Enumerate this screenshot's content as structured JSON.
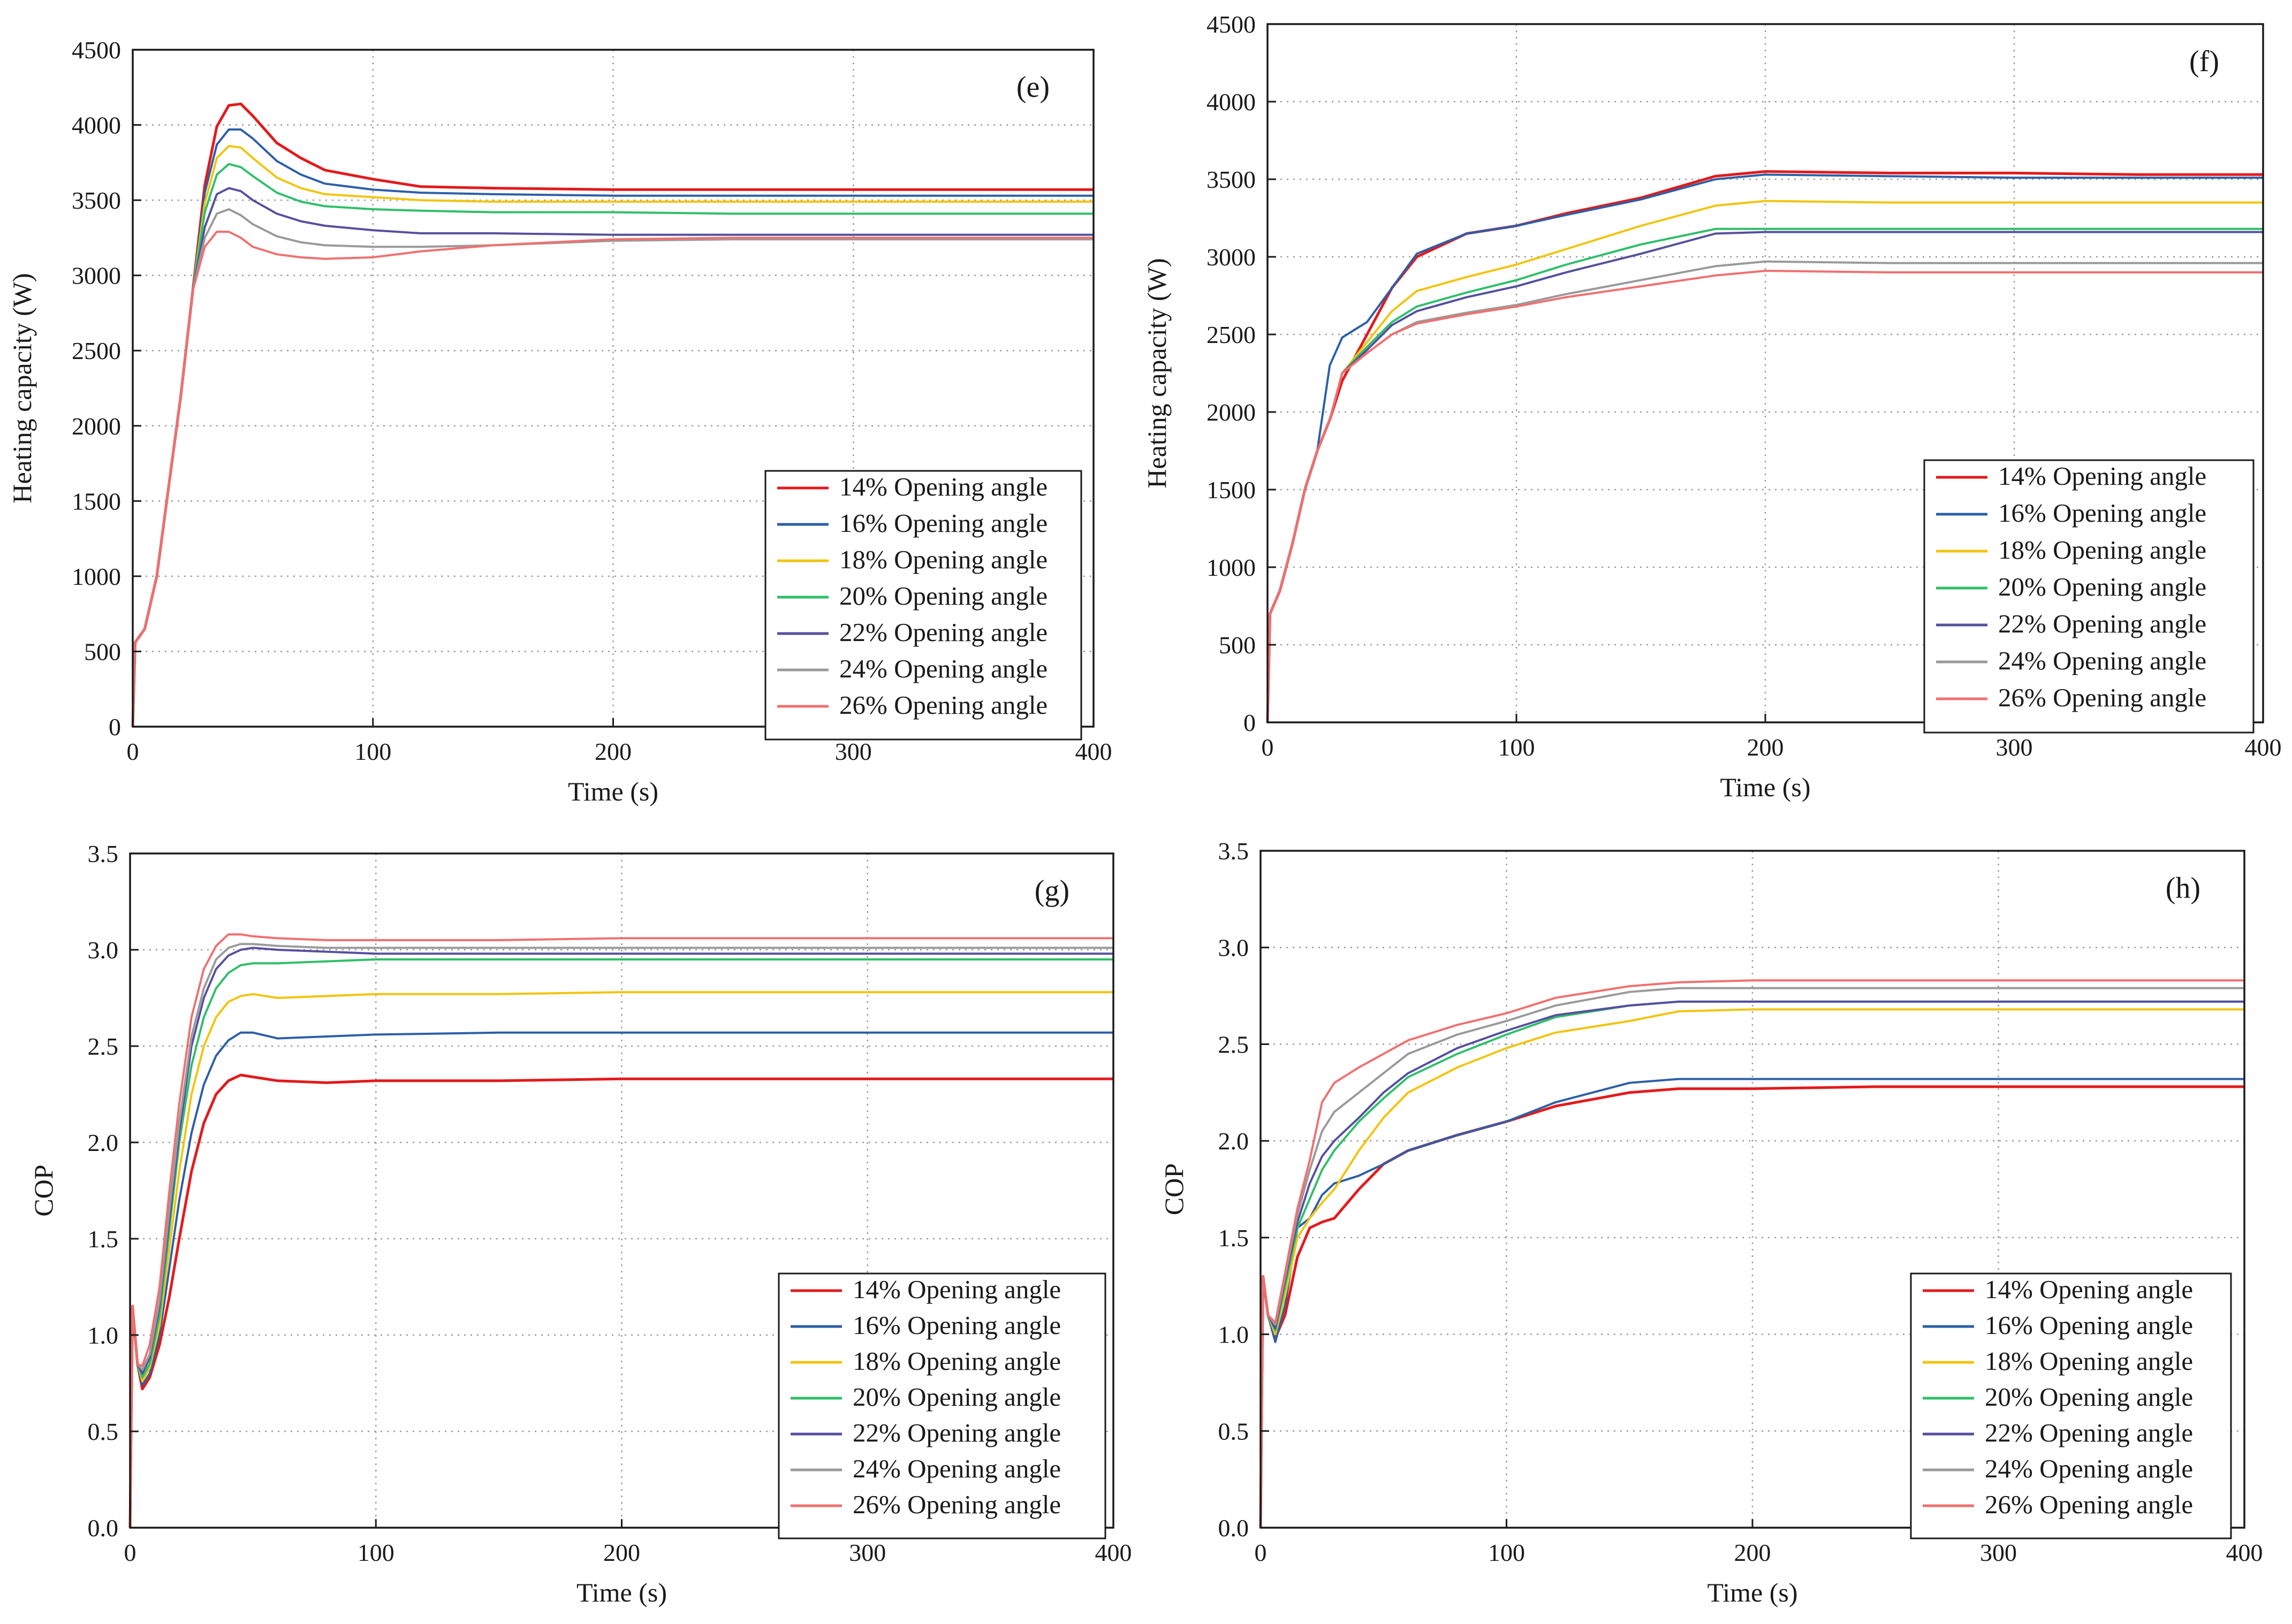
{
  "figure": {
    "series_names": [
      "14% Opening angle",
      "16% Opening angle",
      "18% Opening angle",
      "20% Opening angle",
      "22% Opening angle",
      "24% Opening angle",
      "26% Opening angle"
    ],
    "series_colors": [
      "#e31a1c",
      "#2c5fa8",
      "#f2c40f",
      "#2fbf6a",
      "#55509e",
      "#9a9a9a",
      "#f07070"
    ]
  },
  "chart_data": [
    {
      "type": "line",
      "panel_label": "(e)",
      "title": "",
      "xlabel": "Time (s)",
      "ylabel": "Heating capacity (W)",
      "xlim": [
        0,
        400
      ],
      "ylim": [
        0,
        4500
      ],
      "xticks": [
        0,
        100,
        200,
        300,
        400
      ],
      "yticks": [
        0,
        500,
        1000,
        1500,
        2000,
        2500,
        3000,
        3500,
        4000,
        4500
      ],
      "grid": "dotted",
      "legend": "bottom-right",
      "x": [
        0,
        1,
        5,
        10,
        15,
        20,
        25,
        30,
        35,
        40,
        45,
        50,
        60,
        70,
        80,
        100,
        120,
        150,
        200,
        250,
        300,
        350,
        400
      ],
      "series": [
        {
          "name": "14% Opening angle",
          "values": [
            0,
            560,
            650,
            1000,
            1600,
            2200,
            2900,
            3600,
            3990,
            4130,
            4140,
            4060,
            3880,
            3780,
            3700,
            3640,
            3590,
            3580,
            3570,
            3570,
            3570,
            3570,
            3570
          ]
        },
        {
          "name": "16% Opening angle",
          "values": [
            0,
            560,
            650,
            1000,
            1600,
            2200,
            2900,
            3550,
            3870,
            3970,
            3970,
            3910,
            3760,
            3670,
            3610,
            3570,
            3550,
            3540,
            3530,
            3530,
            3530,
            3530,
            3530
          ]
        },
        {
          "name": "18% Opening angle",
          "values": [
            0,
            560,
            650,
            1000,
            1600,
            2200,
            2900,
            3480,
            3780,
            3860,
            3850,
            3780,
            3650,
            3580,
            3540,
            3520,
            3500,
            3490,
            3490,
            3490,
            3490,
            3490,
            3490
          ]
        },
        {
          "name": "20% Opening angle",
          "values": [
            0,
            560,
            650,
            1000,
            1600,
            2200,
            2900,
            3420,
            3670,
            3740,
            3720,
            3660,
            3550,
            3490,
            3460,
            3440,
            3430,
            3420,
            3420,
            3410,
            3410,
            3410,
            3410
          ]
        },
        {
          "name": "22% Opening angle",
          "values": [
            0,
            560,
            650,
            1000,
            1600,
            2200,
            2900,
            3320,
            3540,
            3580,
            3560,
            3500,
            3410,
            3360,
            3330,
            3300,
            3280,
            3280,
            3270,
            3270,
            3270,
            3270,
            3270
          ]
        },
        {
          "name": "24% Opening angle",
          "values": [
            0,
            560,
            650,
            1000,
            1600,
            2200,
            2900,
            3250,
            3410,
            3440,
            3400,
            3340,
            3260,
            3220,
            3200,
            3190,
            3190,
            3200,
            3230,
            3240,
            3240,
            3240,
            3240
          ]
        },
        {
          "name": "26% Opening angle",
          "values": [
            0,
            560,
            650,
            1000,
            1600,
            2200,
            2900,
            3190,
            3290,
            3290,
            3250,
            3190,
            3140,
            3120,
            3110,
            3120,
            3160,
            3200,
            3240,
            3250,
            3250,
            3250,
            3250
          ]
        }
      ]
    },
    {
      "type": "line",
      "panel_label": "(f)",
      "title": "",
      "xlabel": "Time (s)",
      "ylabel": "Heating capacity (W)",
      "xlim": [
        0,
        400
      ],
      "ylim": [
        0,
        4500
      ],
      "xticks": [
        0,
        100,
        200,
        300,
        400
      ],
      "yticks": [
        0,
        500,
        1000,
        1500,
        2000,
        2500,
        3000,
        3500,
        4000,
        4500
      ],
      "grid": "dotted",
      "legend": "bottom-right",
      "x": [
        0,
        1,
        5,
        10,
        15,
        20,
        25,
        30,
        40,
        50,
        60,
        80,
        100,
        120,
        150,
        180,
        200,
        250,
        300,
        350,
        400
      ],
      "series": [
        {
          "name": "14% Opening angle",
          "values": [
            0,
            700,
            850,
            1150,
            1500,
            1750,
            1950,
            2200,
            2500,
            2800,
            3000,
            3150,
            3200,
            3280,
            3380,
            3520,
            3550,
            3540,
            3540,
            3530,
            3530
          ]
        },
        {
          "name": "16% Opening angle",
          "values": [
            0,
            700,
            850,
            1150,
            1500,
            1750,
            2300,
            2480,
            2580,
            2800,
            3020,
            3150,
            3200,
            3270,
            3370,
            3500,
            3530,
            3520,
            3510,
            3510,
            3510
          ]
        },
        {
          "name": "18% Opening angle",
          "values": [
            0,
            700,
            850,
            1150,
            1500,
            1750,
            1950,
            2250,
            2450,
            2650,
            2780,
            2870,
            2950,
            3050,
            3200,
            3330,
            3360,
            3350,
            3350,
            3350,
            3350
          ]
        },
        {
          "name": "20% Opening angle",
          "values": [
            0,
            700,
            850,
            1150,
            1500,
            1750,
            1950,
            2250,
            2420,
            2580,
            2680,
            2770,
            2850,
            2950,
            3080,
            3180,
            3180,
            3180,
            3180,
            3180,
            3180
          ]
        },
        {
          "name": "22% Opening angle",
          "values": [
            0,
            700,
            850,
            1150,
            1500,
            1750,
            1950,
            2250,
            2400,
            2560,
            2650,
            2740,
            2810,
            2900,
            3020,
            3150,
            3160,
            3160,
            3160,
            3160,
            3160
          ]
        },
        {
          "name": "24% Opening angle",
          "values": [
            0,
            700,
            850,
            1150,
            1500,
            1750,
            1950,
            2250,
            2380,
            2500,
            2580,
            2640,
            2690,
            2760,
            2850,
            2940,
            2970,
            2960,
            2960,
            2960,
            2960
          ]
        },
        {
          "name": "26% Opening angle",
          "values": [
            0,
            700,
            850,
            1150,
            1500,
            1750,
            1950,
            2250,
            2380,
            2500,
            2570,
            2630,
            2680,
            2740,
            2810,
            2880,
            2910,
            2900,
            2900,
            2900,
            2900
          ]
        }
      ]
    },
    {
      "type": "line",
      "panel_label": "(g)",
      "title": "",
      "xlabel": "Time (s)",
      "ylabel": "COP",
      "xlim": [
        0,
        400
      ],
      "ylim": [
        0,
        3.5
      ],
      "xticks": [
        0,
        100,
        200,
        300,
        400
      ],
      "yticks": [
        0.0,
        0.5,
        1.0,
        1.5,
        2.0,
        2.5,
        3.0,
        3.5
      ],
      "ytick_labels": [
        "0.0",
        "0.5",
        "1.0",
        "1.5",
        "2.0",
        "2.5",
        "3.0",
        "3.5"
      ],
      "grid": "dotted",
      "legend": "bottom-right",
      "x": [
        0,
        1,
        3,
        5,
        8,
        12,
        16,
        20,
        25,
        30,
        35,
        40,
        45,
        50,
        60,
        80,
        100,
        150,
        200,
        250,
        300,
        350,
        400
      ],
      "series": [
        {
          "name": "14% Opening angle",
          "values": [
            0,
            1.15,
            0.85,
            0.72,
            0.78,
            0.95,
            1.2,
            1.5,
            1.85,
            2.1,
            2.25,
            2.32,
            2.35,
            2.34,
            2.32,
            2.31,
            2.32,
            2.32,
            2.33,
            2.33,
            2.33,
            2.33,
            2.33
          ]
        },
        {
          "name": "16% Opening angle",
          "values": [
            0,
            1.15,
            0.85,
            0.74,
            0.8,
            1.0,
            1.35,
            1.7,
            2.05,
            2.3,
            2.45,
            2.53,
            2.57,
            2.57,
            2.54,
            2.55,
            2.56,
            2.57,
            2.57,
            2.57,
            2.57,
            2.57,
            2.57
          ]
        },
        {
          "name": "18% Opening angle",
          "values": [
            0,
            1.15,
            0.85,
            0.76,
            0.83,
            1.05,
            1.45,
            1.85,
            2.25,
            2.5,
            2.65,
            2.73,
            2.76,
            2.77,
            2.75,
            2.76,
            2.77,
            2.77,
            2.78,
            2.78,
            2.78,
            2.78,
            2.78
          ]
        },
        {
          "name": "20% Opening angle",
          "values": [
            0,
            1.15,
            0.85,
            0.78,
            0.85,
            1.1,
            1.55,
            2.0,
            2.4,
            2.65,
            2.8,
            2.88,
            2.92,
            2.93,
            2.93,
            2.94,
            2.95,
            2.95,
            2.95,
            2.95,
            2.95,
            2.95,
            2.95
          ]
        },
        {
          "name": "22% Opening angle",
          "values": [
            0,
            1.15,
            0.85,
            0.8,
            0.88,
            1.15,
            1.6,
            2.05,
            2.5,
            2.75,
            2.9,
            2.97,
            3.0,
            3.01,
            3.0,
            2.99,
            2.98,
            2.98,
            2.98,
            2.98,
            2.98,
            2.98,
            2.98
          ]
        },
        {
          "name": "24% Opening angle",
          "values": [
            0,
            1.15,
            0.85,
            0.82,
            0.9,
            1.18,
            1.65,
            2.1,
            2.55,
            2.8,
            2.95,
            3.01,
            3.03,
            3.03,
            3.02,
            3.01,
            3.01,
            3.01,
            3.01,
            3.01,
            3.01,
            3.01,
            3.01
          ]
        },
        {
          "name": "26% Opening angle",
          "values": [
            0,
            1.15,
            0.85,
            0.84,
            0.95,
            1.25,
            1.75,
            2.2,
            2.65,
            2.9,
            3.02,
            3.08,
            3.08,
            3.07,
            3.06,
            3.05,
            3.05,
            3.05,
            3.06,
            3.06,
            3.06,
            3.06,
            3.06
          ]
        }
      ]
    },
    {
      "type": "line",
      "panel_label": "(h)",
      "title": "",
      "xlabel": "Time (s)",
      "ylabel": "COP",
      "xlim": [
        0,
        400
      ],
      "ylim": [
        0,
        3.5
      ],
      "xticks": [
        0,
        100,
        200,
        300,
        400
      ],
      "yticks": [
        0.0,
        0.5,
        1.0,
        1.5,
        2.0,
        2.5,
        3.0,
        3.5
      ],
      "ytick_labels": [
        "0.0",
        "0.5",
        "1.0",
        "1.5",
        "2.0",
        "2.5",
        "3.0",
        "3.5"
      ],
      "grid": "dotted",
      "legend": "bottom-right",
      "x": [
        0,
        1,
        3,
        6,
        10,
        15,
        20,
        25,
        30,
        40,
        50,
        60,
        80,
        100,
        120,
        150,
        170,
        200,
        250,
        300,
        350,
        400
      ],
      "series": [
        {
          "name": "14% Opening angle",
          "values": [
            0,
            1.3,
            1.1,
            0.98,
            1.1,
            1.4,
            1.55,
            1.58,
            1.6,
            1.75,
            1.88,
            1.95,
            2.03,
            2.1,
            2.18,
            2.25,
            2.27,
            2.27,
            2.28,
            2.28,
            2.28,
            2.28
          ]
        },
        {
          "name": "16% Opening angle",
          "values": [
            0,
            1.3,
            1.1,
            0.96,
            1.15,
            1.55,
            1.6,
            1.72,
            1.78,
            1.82,
            1.88,
            1.95,
            2.03,
            2.1,
            2.2,
            2.3,
            2.32,
            2.32,
            2.32,
            2.32,
            2.32,
            2.32
          ]
        },
        {
          "name": "18% Opening angle",
          "values": [
            0,
            1.3,
            1.1,
            1.0,
            1.2,
            1.5,
            1.6,
            1.68,
            1.75,
            1.95,
            2.12,
            2.25,
            2.38,
            2.48,
            2.56,
            2.62,
            2.67,
            2.68,
            2.68,
            2.68,
            2.68,
            2.68
          ]
        },
        {
          "name": "20% Opening angle",
          "values": [
            0,
            1.3,
            1.1,
            1.02,
            1.25,
            1.55,
            1.7,
            1.85,
            1.95,
            2.1,
            2.22,
            2.33,
            2.45,
            2.55,
            2.64,
            2.7,
            2.72,
            2.72,
            2.72,
            2.72,
            2.72,
            2.72
          ]
        },
        {
          "name": "22% Opening angle",
          "values": [
            0,
            1.3,
            1.1,
            1.03,
            1.28,
            1.58,
            1.78,
            1.92,
            2.0,
            2.12,
            2.25,
            2.35,
            2.48,
            2.57,
            2.65,
            2.7,
            2.72,
            2.72,
            2.72,
            2.72,
            2.72,
            2.72
          ]
        },
        {
          "name": "24% Opening angle",
          "values": [
            0,
            1.3,
            1.1,
            1.05,
            1.3,
            1.62,
            1.85,
            2.05,
            2.15,
            2.25,
            2.35,
            2.45,
            2.55,
            2.62,
            2.7,
            2.77,
            2.79,
            2.79,
            2.79,
            2.79,
            2.79,
            2.79
          ]
        },
        {
          "name": "26% Opening angle",
          "values": [
            0,
            1.3,
            1.1,
            1.06,
            1.32,
            1.65,
            1.9,
            2.2,
            2.3,
            2.38,
            2.45,
            2.52,
            2.6,
            2.66,
            2.74,
            2.8,
            2.82,
            2.83,
            2.83,
            2.83,
            2.83,
            2.83
          ]
        }
      ]
    }
  ]
}
